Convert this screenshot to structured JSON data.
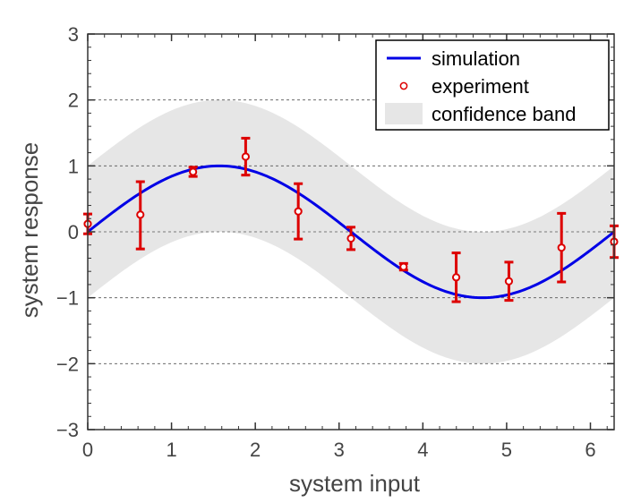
{
  "chart_data": {
    "type": "line",
    "title": "",
    "xlabel": "system input",
    "ylabel": "system response",
    "xlim": [
      0,
      6.2832
    ],
    "ylim": [
      -3,
      3
    ],
    "xticks": [
      0,
      1,
      2,
      3,
      4,
      5,
      6
    ],
    "yticks": [
      -3,
      -2,
      -1,
      0,
      1,
      2,
      3
    ],
    "ytick_labels": [
      "−3",
      "−2",
      "−1",
      "0",
      "1",
      "2",
      "3"
    ],
    "grid": {
      "x": false,
      "y": "dashed"
    },
    "legend_placement": "top-right",
    "legend": [
      {
        "label": "simulation",
        "kind": "line"
      },
      {
        "label": "experiment",
        "kind": "marker"
      },
      {
        "label": "confidence band",
        "kind": "patch"
      }
    ],
    "series": [
      {
        "name": "simulation",
        "kind": "line",
        "function": "sin(x)",
        "color": "#0000e6"
      },
      {
        "name": "experiment",
        "kind": "errorbar",
        "color": "#dd0000",
        "x": [
          0,
          0.628,
          1.257,
          1.885,
          2.513,
          3.142,
          3.77,
          4.398,
          5.027,
          5.655,
          6.283
        ],
        "y": [
          0.12,
          0.26,
          0.91,
          1.14,
          0.31,
          -0.1,
          -0.53,
          -0.69,
          -0.75,
          -0.24,
          -0.15
        ],
        "yerr_low": [
          0.15,
          0.52,
          0.07,
          0.28,
          0.42,
          0.17,
          0.05,
          0.37,
          0.29,
          0.52,
          0.24
        ],
        "yerr_high": [
          0.15,
          0.5,
          0.07,
          0.28,
          0.42,
          0.17,
          0.05,
          0.37,
          0.29,
          0.52,
          0.24
        ]
      },
      {
        "name": "confidence band",
        "kind": "band",
        "lower": "sin(x) - 1",
        "upper": "sin(x) + 1",
        "color": "#e6e6e6"
      }
    ]
  }
}
